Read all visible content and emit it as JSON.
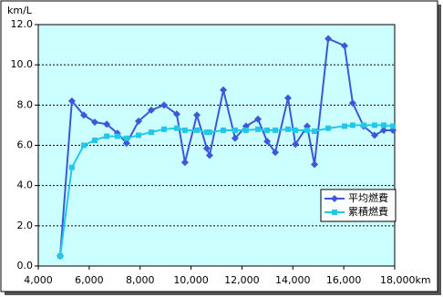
{
  "chart_data": {
    "type": "line",
    "y_label": "km/L",
    "x": [
      4860,
      5320,
      5790,
      6220,
      6690,
      7110,
      7470,
      7940,
      8440,
      8940,
      9440,
      9760,
      10230,
      10620,
      10730,
      11270,
      11730,
      12160,
      12630,
      12990,
      13310,
      13810,
      14100,
      14560,
      14850,
      15390,
      16030,
      16350,
      16780,
      17210,
      17570,
      17930
    ],
    "series": [
      {
        "name": "平均燃費",
        "color": "#3a58d8",
        "marker": "diamond",
        "values": [
          0.5,
          8.2,
          7.5,
          7.15,
          7.05,
          6.6,
          6.1,
          7.2,
          7.75,
          8.0,
          7.55,
          5.15,
          7.5,
          5.85,
          5.5,
          8.75,
          6.35,
          6.95,
          7.3,
          6.2,
          5.65,
          8.35,
          6.05,
          6.95,
          5.05,
          11.3,
          10.95,
          8.1,
          6.95,
          6.5,
          6.75,
          6.75
        ]
      },
      {
        "name": "累積燃費",
        "color": "#22c8ec",
        "marker": "square",
        "values": [
          0.5,
          4.9,
          6.0,
          6.25,
          6.45,
          6.45,
          6.35,
          6.5,
          6.65,
          6.8,
          6.85,
          6.75,
          6.75,
          6.65,
          6.65,
          6.75,
          6.75,
          6.75,
          6.8,
          6.75,
          6.75,
          6.8,
          6.75,
          6.75,
          6.7,
          6.85,
          6.95,
          7.0,
          7.0,
          7.0,
          7.0,
          6.95
        ]
      }
    ],
    "xlim": [
      4000,
      18000
    ],
    "xticks": [
      {
        "value": 4000,
        "label": "4,000"
      },
      {
        "value": 6000,
        "label": "6,000"
      },
      {
        "value": 8000,
        "label": "8,000"
      },
      {
        "value": 10000,
        "label": "10,000"
      },
      {
        "value": 12000,
        "label": "12,000"
      },
      {
        "value": 14000,
        "label": "14,000"
      },
      {
        "value": 16000,
        "label": "16,000"
      },
      {
        "value": 18000,
        "label": "18,000km"
      }
    ],
    "ylim": [
      0,
      12
    ],
    "yticks": [
      {
        "value": 0,
        "label": "0.0"
      },
      {
        "value": 2,
        "label": "2.0"
      },
      {
        "value": 4,
        "label": "4.0"
      },
      {
        "value": 6,
        "label": "6.0"
      },
      {
        "value": 8,
        "label": "8.0"
      },
      {
        "value": 10,
        "label": "10.0"
      },
      {
        "value": 12,
        "label": "12.0"
      }
    ],
    "grid": true,
    "legend": "lower-right",
    "plot_background": "#ccffff"
  }
}
